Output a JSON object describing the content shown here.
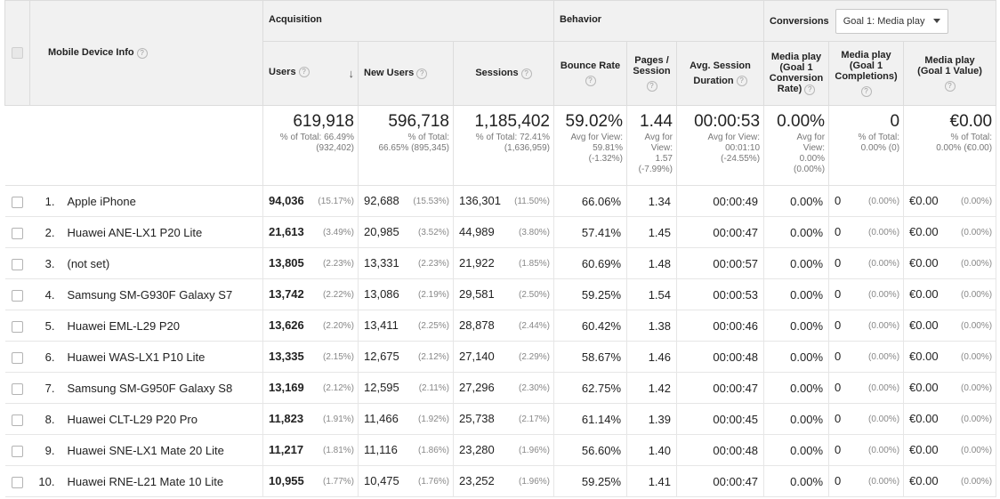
{
  "header": {
    "dimension": "Mobile Device Info",
    "groups": {
      "acquisition": "Acquisition",
      "behavior": "Behavior",
      "conversions": "Conversions"
    },
    "goal_select": "Goal 1: Media play",
    "columns": {
      "users": "Users",
      "new_users": "New Users",
      "sessions": "Sessions",
      "bounce_rate": "Bounce Rate",
      "pages_session_1": "Pages /",
      "pages_session_2": "Session",
      "avg_duration_1": "Avg. Session",
      "avg_duration_2": "Duration",
      "conv_rate_1": "Media play",
      "conv_rate_2": "(Goal 1",
      "conv_rate_3": "Conversion",
      "conv_rate_4": "Rate)",
      "completions_1": "Media play",
      "completions_2": "(Goal 1",
      "completions_3": "Completions)",
      "value_1": "Media play",
      "value_2": "(Goal 1 Value)"
    },
    "help_glyph": "?",
    "sort_glyph": "↓"
  },
  "totals": {
    "users": {
      "value": "619,918",
      "l1": "% of Total: 66.49%",
      "l2": "(932,402)"
    },
    "new_users": {
      "value": "596,718",
      "l1": "% of Total:",
      "l2": "66.65% (895,345)"
    },
    "sessions": {
      "value": "1,185,402",
      "l1": "% of Total: 72.41%",
      "l2": "(1,636,959)"
    },
    "bounce_rate": {
      "value": "59.02%",
      "l1": "Avg for View:",
      "l2": "59.81%",
      "l3": "(-1.32%)"
    },
    "pages_session": {
      "value": "1.44",
      "l1": "Avg for",
      "l2": "View:",
      "l3": "1.57",
      "l4": "(-7.99%)"
    },
    "avg_duration": {
      "value": "00:00:53",
      "l1": "Avg for View:",
      "l2": "00:01:10",
      "l3": "(-24.55%)"
    },
    "conv_rate": {
      "value": "0.00%",
      "l1": "Avg for",
      "l2": "View:",
      "l3": "0.00%",
      "l4": "(0.00%)"
    },
    "completions": {
      "value": "0",
      "l1": "% of Total:",
      "l2": "0.00% (0)"
    },
    "value": {
      "value": "€0.00",
      "l1": "% of Total:",
      "l2": "0.00% (€0.00)"
    }
  },
  "rows": [
    {
      "idx": "1.",
      "device": "Apple iPhone",
      "users": "94,036",
      "users_pct": "(15.17%)",
      "new_users": "92,688",
      "new_users_pct": "(15.53%)",
      "sessions": "136,301",
      "sessions_pct": "(11.50%)",
      "bounce": "66.06%",
      "pages": "1.34",
      "duration": "00:00:49",
      "conv": "0.00%",
      "comp": "0",
      "comp_pct": "(0.00%)",
      "val": "€0.00",
      "val_pct": "(0.00%)"
    },
    {
      "idx": "2.",
      "device": "Huawei ANE-LX1 P20 Lite",
      "users": "21,613",
      "users_pct": "(3.49%)",
      "new_users": "20,985",
      "new_users_pct": "(3.52%)",
      "sessions": "44,989",
      "sessions_pct": "(3.80%)",
      "bounce": "57.41%",
      "pages": "1.45",
      "duration": "00:00:47",
      "conv": "0.00%",
      "comp": "0",
      "comp_pct": "(0.00%)",
      "val": "€0.00",
      "val_pct": "(0.00%)"
    },
    {
      "idx": "3.",
      "device": "(not set)",
      "users": "13,805",
      "users_pct": "(2.23%)",
      "new_users": "13,331",
      "new_users_pct": "(2.23%)",
      "sessions": "21,922",
      "sessions_pct": "(1.85%)",
      "bounce": "60.69%",
      "pages": "1.48",
      "duration": "00:00:57",
      "conv": "0.00%",
      "comp": "0",
      "comp_pct": "(0.00%)",
      "val": "€0.00",
      "val_pct": "(0.00%)"
    },
    {
      "idx": "4.",
      "device": "Samsung SM-G930F Galaxy S7",
      "users": "13,742",
      "users_pct": "(2.22%)",
      "new_users": "13,086",
      "new_users_pct": "(2.19%)",
      "sessions": "29,581",
      "sessions_pct": "(2.50%)",
      "bounce": "59.25%",
      "pages": "1.54",
      "duration": "00:00:53",
      "conv": "0.00%",
      "comp": "0",
      "comp_pct": "(0.00%)",
      "val": "€0.00",
      "val_pct": "(0.00%)"
    },
    {
      "idx": "5.",
      "device": "Huawei EML-L29 P20",
      "users": "13,626",
      "users_pct": "(2.20%)",
      "new_users": "13,411",
      "new_users_pct": "(2.25%)",
      "sessions": "28,878",
      "sessions_pct": "(2.44%)",
      "bounce": "60.42%",
      "pages": "1.38",
      "duration": "00:00:46",
      "conv": "0.00%",
      "comp": "0",
      "comp_pct": "(0.00%)",
      "val": "€0.00",
      "val_pct": "(0.00%)"
    },
    {
      "idx": "6.",
      "device": "Huawei WAS-LX1 P10 Lite",
      "users": "13,335",
      "users_pct": "(2.15%)",
      "new_users": "12,675",
      "new_users_pct": "(2.12%)",
      "sessions": "27,140",
      "sessions_pct": "(2.29%)",
      "bounce": "58.67%",
      "pages": "1.46",
      "duration": "00:00:48",
      "conv": "0.00%",
      "comp": "0",
      "comp_pct": "(0.00%)",
      "val": "€0.00",
      "val_pct": "(0.00%)"
    },
    {
      "idx": "7.",
      "device": "Samsung SM-G950F Galaxy S8",
      "users": "13,169",
      "users_pct": "(2.12%)",
      "new_users": "12,595",
      "new_users_pct": "(2.11%)",
      "sessions": "27,296",
      "sessions_pct": "(2.30%)",
      "bounce": "62.75%",
      "pages": "1.42",
      "duration": "00:00:47",
      "conv": "0.00%",
      "comp": "0",
      "comp_pct": "(0.00%)",
      "val": "€0.00",
      "val_pct": "(0.00%)"
    },
    {
      "idx": "8.",
      "device": "Huawei CLT-L29 P20 Pro",
      "users": "11,823",
      "users_pct": "(1.91%)",
      "new_users": "11,466",
      "new_users_pct": "(1.92%)",
      "sessions": "25,738",
      "sessions_pct": "(2.17%)",
      "bounce": "61.14%",
      "pages": "1.39",
      "duration": "00:00:45",
      "conv": "0.00%",
      "comp": "0",
      "comp_pct": "(0.00%)",
      "val": "€0.00",
      "val_pct": "(0.00%)"
    },
    {
      "idx": "9.",
      "device": "Huawei SNE-LX1 Mate 20 Lite",
      "users": "11,217",
      "users_pct": "(1.81%)",
      "new_users": "11,116",
      "new_users_pct": "(1.86%)",
      "sessions": "23,280",
      "sessions_pct": "(1.96%)",
      "bounce": "56.60%",
      "pages": "1.40",
      "duration": "00:00:48",
      "conv": "0.00%",
      "comp": "0",
      "comp_pct": "(0.00%)",
      "val": "€0.00",
      "val_pct": "(0.00%)"
    },
    {
      "idx": "10.",
      "device": "Huawei RNE-L21 Mate 10 Lite",
      "users": "10,955",
      "users_pct": "(1.77%)",
      "new_users": "10,475",
      "new_users_pct": "(1.76%)",
      "sessions": "23,252",
      "sessions_pct": "(1.96%)",
      "bounce": "59.25%",
      "pages": "1.41",
      "duration": "00:00:47",
      "conv": "0.00%",
      "comp": "0",
      "comp_pct": "(0.00%)",
      "val": "€0.00",
      "val_pct": "(0.00%)"
    }
  ]
}
